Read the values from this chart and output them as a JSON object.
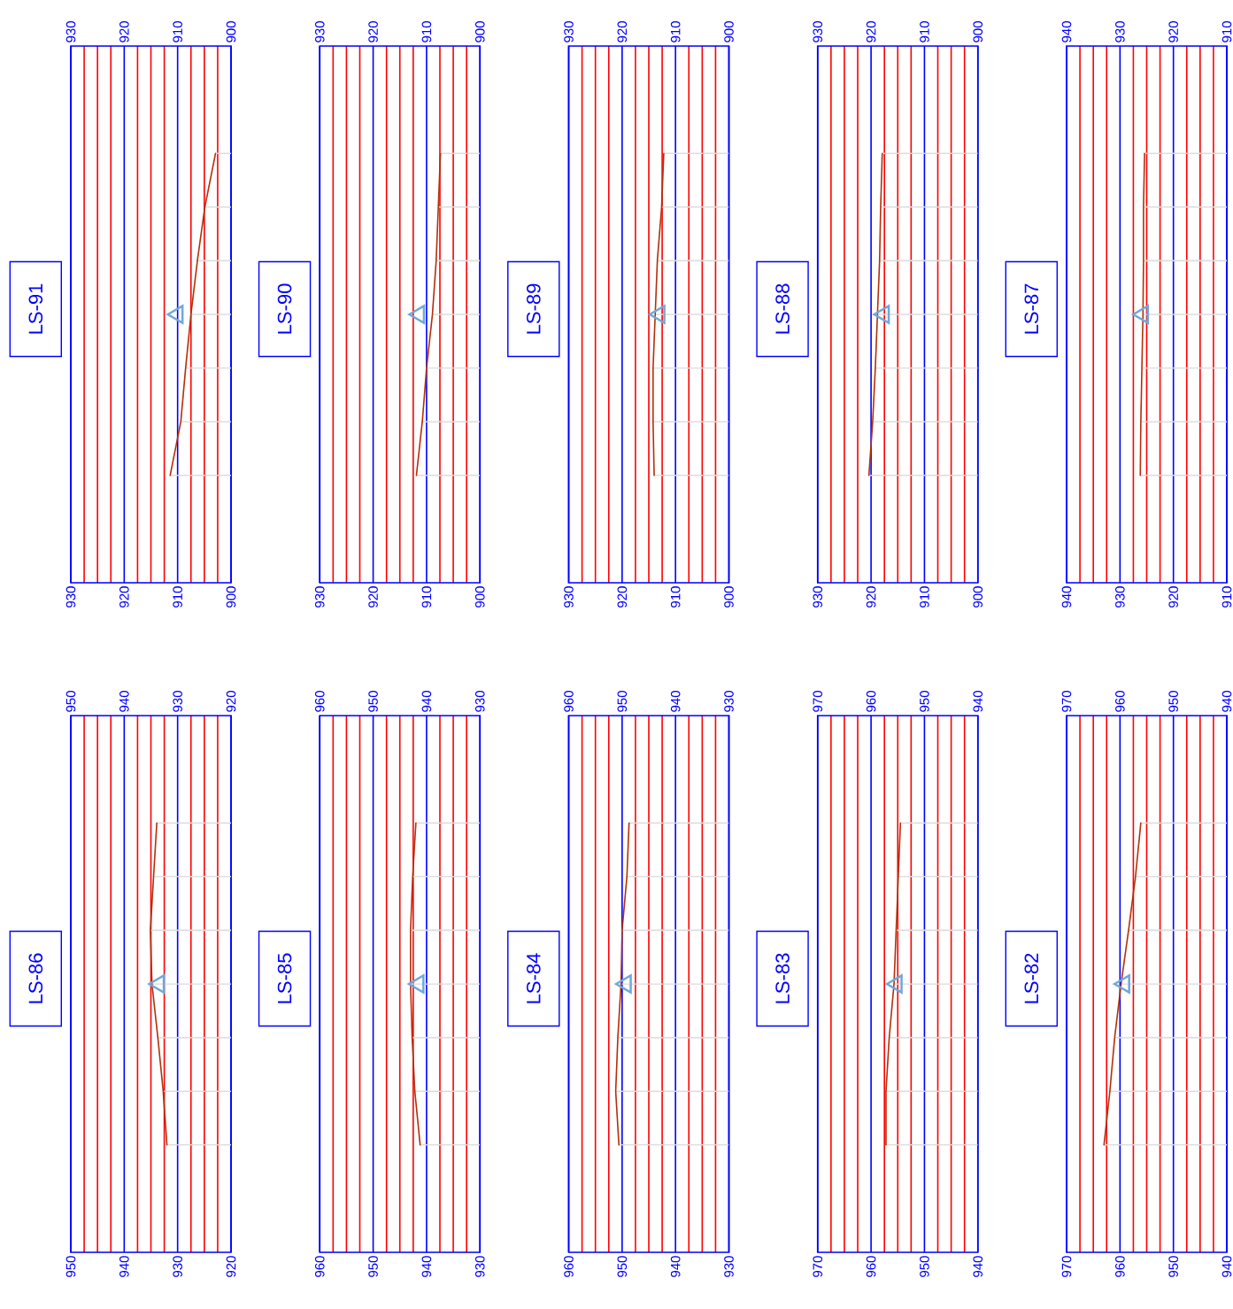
{
  "chart_data": [
    {
      "type": "line",
      "orientation": "horizontal",
      "title": "LS-91",
      "categories": [
        null,
        null,
        null,
        null,
        null,
        null,
        null
      ],
      "xlim": [
        930,
        900
      ],
      "xticks": [
        930,
        {
          "value": 927.5,
          "label": null
        },
        {
          "value": 925,
          "label": null
        },
        {
          "value": 922.5,
          "label": null
        },
        920,
        {
          "value": 917.5,
          "label": null
        },
        {
          "value": 915,
          "label": null
        },
        {
          "value": 912.5,
          "label": null
        },
        910,
        {
          "value": 907.5,
          "label": null
        },
        {
          "value": 905,
          "label": null
        },
        {
          "value": 902.5,
          "label": null
        },
        900
      ],
      "x2lim": [
        930,
        900
      ],
      "x2ticks": [
        930,
        920,
        910,
        900
      ],
      "tick_labels": "x",
      "grid": "x",
      "series": [
        {
          "type": "bar",
          "color": "#dddddd",
          "values": [
            902.9,
            904.9,
            906.3,
            907.5,
            908.5,
            909.4,
            911.4
          ]
        },
        {
          "color": "#b3300a",
          "values": [
            902.9,
            904.9,
            906.3,
            907.5,
            908.5,
            909.4,
            911.4
          ]
        },
        {
          "type": "scatter",
          "marker": "triangle",
          "color": "#6fa8dc",
          "values": [
            null,
            null,
            null,
            910.0,
            null,
            null,
            null
          ]
        }
      ]
    },
    {
      "type": "line",
      "orientation": "horizontal",
      "title": "LS-90",
      "categories": [
        null,
        null,
        null,
        null,
        null,
        null,
        null
      ],
      "xlim": [
        930,
        900
      ],
      "xticks": [
        930,
        {
          "value": 927.5,
          "label": null
        },
        {
          "value": 925,
          "label": null
        },
        {
          "value": 922.5,
          "label": null
        },
        920,
        {
          "value": 917.5,
          "label": null
        },
        {
          "value": 915,
          "label": null
        },
        {
          "value": 912.5,
          "label": null
        },
        910,
        {
          "value": 907.5,
          "label": null
        },
        {
          "value": 905,
          "label": null
        },
        {
          "value": 902.5,
          "label": null
        },
        900
      ],
      "x2lim": [
        930,
        900
      ],
      "x2ticks": [
        930,
        920,
        910,
        900
      ],
      "tick_labels": "x",
      "grid": "x",
      "series": [
        {
          "type": "bar",
          "color": "#dddddd",
          "values": [
            907.4,
            907.8,
            908.2,
            908.9,
            910.0,
            910.8,
            911.9
          ]
        },
        {
          "color": "#b3300a",
          "values": [
            907.4,
            907.8,
            908.2,
            908.9,
            910.0,
            910.8,
            911.9
          ]
        },
        {
          "type": "scatter",
          "marker": "triangle",
          "color": "#6fa8dc",
          "values": [
            null,
            null,
            null,
            911.4,
            null,
            null,
            null
          ]
        }
      ]
    },
    {
      "type": "line",
      "orientation": "horizontal",
      "title": "LS-89",
      "categories": [
        null,
        null,
        null,
        null,
        null,
        null,
        null
      ],
      "xlim": [
        930,
        900
      ],
      "xticks": [
        930,
        {
          "value": 927.5,
          "label": null
        },
        {
          "value": 925,
          "label": null
        },
        {
          "value": 922.5,
          "label": null
        },
        920,
        {
          "value": 917.5,
          "label": null
        },
        {
          "value": 915,
          "label": null
        },
        {
          "value": 912.5,
          "label": null
        },
        910,
        {
          "value": 907.5,
          "label": null
        },
        {
          "value": 905,
          "label": null
        },
        {
          "value": 902.5,
          "label": null
        },
        900
      ],
      "x2lim": [
        930,
        900
      ],
      "x2ticks": [
        930,
        920,
        910,
        900
      ],
      "tick_labels": "x",
      "grid": "x",
      "series": [
        {
          "type": "bar",
          "color": "#dddddd",
          "values": [
            912.2,
            912.6,
            913.4,
            913.8,
            914.2,
            914.2,
            914.0
          ]
        },
        {
          "color": "#b3300a",
          "values": [
            912.2,
            912.6,
            913.4,
            913.8,
            914.2,
            914.2,
            914.0
          ]
        },
        {
          "type": "scatter",
          "marker": "triangle",
          "color": "#6fa8dc",
          "values": [
            null,
            null,
            null,
            913.0,
            null,
            null,
            null
          ]
        }
      ]
    },
    {
      "type": "line",
      "orientation": "horizontal",
      "title": "LS-88",
      "categories": [
        null,
        null,
        null,
        null,
        null,
        null,
        null
      ],
      "xlim": [
        930,
        900
      ],
      "xticks": [
        930,
        {
          "value": 927.5,
          "label": null
        },
        {
          "value": 925,
          "label": null
        },
        {
          "value": 922.5,
          "label": null
        },
        920,
        {
          "value": 917.5,
          "label": null
        },
        {
          "value": 915,
          "label": null
        },
        {
          "value": 912.5,
          "label": null
        },
        910,
        {
          "value": 907.5,
          "label": null
        },
        {
          "value": 905,
          "label": null
        },
        {
          "value": 902.5,
          "label": null
        },
        900
      ],
      "x2lim": [
        930,
        900
      ],
      "x2ticks": [
        930,
        920,
        910,
        900
      ],
      "tick_labels": "x",
      "grid": "x",
      "series": [
        {
          "type": "bar",
          "color": "#dddddd",
          "values": [
            917.9,
            918.2,
            918.4,
            918.8,
            919.2,
            919.7,
            920.4
          ]
        },
        {
          "color": "#b3300a",
          "values": [
            917.9,
            918.2,
            918.4,
            918.8,
            919.2,
            919.7,
            920.4
          ]
        },
        {
          "type": "scatter",
          "marker": "triangle",
          "color": "#6fa8dc",
          "values": [
            null,
            null,
            null,
            917.6,
            null,
            null,
            null
          ]
        }
      ]
    },
    {
      "type": "line",
      "orientation": "horizontal",
      "title": "LS-87",
      "categories": [
        null,
        null,
        null,
        null,
        null,
        null,
        null
      ],
      "xlim": [
        940,
        910
      ],
      "xticks": [
        940,
        {
          "value": 937.5,
          "label": null
        },
        {
          "value": 935,
          "label": null
        },
        {
          "value": 932.5,
          "label": null
        },
        930,
        {
          "value": 927.5,
          "label": null
        },
        {
          "value": 925,
          "label": null
        },
        {
          "value": 922.5,
          "label": null
        },
        920,
        {
          "value": 917.5,
          "label": null
        },
        {
          "value": 915,
          "label": null
        },
        {
          "value": 912.5,
          "label": null
        },
        910
      ],
      "x2lim": [
        940,
        910
      ],
      "x2ticks": [
        940,
        930,
        920,
        910
      ],
      "tick_labels": "x",
      "grid": "x",
      "series": [
        {
          "type": "bar",
          "color": "#dddddd",
          "values": [
            925.4,
            925.6,
            925.6,
            925.7,
            925.9,
            926.1,
            926.2
          ]
        },
        {
          "color": "#b3300a",
          "values": [
            925.4,
            925.6,
            925.6,
            925.7,
            925.9,
            926.1,
            926.2
          ]
        },
        {
          "type": "scatter",
          "marker": "triangle",
          "color": "#6fa8dc",
          "values": [
            null,
            null,
            null,
            925.7,
            null,
            null,
            null
          ]
        }
      ]
    },
    {
      "type": "line",
      "orientation": "horizontal",
      "title": "LS-86",
      "categories": [
        null,
        null,
        null,
        null,
        null,
        null,
        null
      ],
      "xlim": [
        950,
        920
      ],
      "xticks": [
        950,
        {
          "value": 947.5,
          "label": null
        },
        {
          "value": 945,
          "label": null
        },
        {
          "value": 942.5,
          "label": null
        },
        940,
        {
          "value": 937.5,
          "label": null
        },
        {
          "value": 935,
          "label": null
        },
        {
          "value": 932.5,
          "label": null
        },
        930,
        {
          "value": 927.5,
          "label": null
        },
        {
          "value": 925,
          "label": null
        },
        {
          "value": 922.5,
          "label": null
        },
        920
      ],
      "x2lim": [
        950,
        920
      ],
      "x2ticks": [
        950,
        940,
        930,
        920
      ],
      "tick_labels": "x",
      "grid": "x",
      "series": [
        {
          "type": "bar",
          "color": "#dddddd",
          "values": [
            933.9,
            934.5,
            935.1,
            934.8,
            933.7,
            932.7,
            932.0
          ]
        },
        {
          "color": "#b3300a",
          "values": [
            933.9,
            934.5,
            935.1,
            934.8,
            933.7,
            932.7,
            932.0
          ]
        },
        {
          "type": "scatter",
          "marker": "triangle",
          "color": "#6fa8dc",
          "values": [
            null,
            null,
            null,
            933.5,
            null,
            null,
            null
          ]
        }
      ]
    },
    {
      "type": "line",
      "orientation": "horizontal",
      "title": "LS-85",
      "categories": [
        null,
        null,
        null,
        null,
        null,
        null,
        null
      ],
      "xlim": [
        960,
        930
      ],
      "xticks": [
        960,
        {
          "value": 957.5,
          "label": null
        },
        {
          "value": 955,
          "label": null
        },
        {
          "value": 952.5,
          "label": null
        },
        950,
        {
          "value": 947.5,
          "label": null
        },
        {
          "value": 945,
          "label": null
        },
        {
          "value": 942.5,
          "label": null
        },
        940,
        {
          "value": 937.5,
          "label": null
        },
        {
          "value": 935,
          "label": null
        },
        {
          "value": 932.5,
          "label": null
        },
        930
      ],
      "x2lim": [
        960,
        930
      ],
      "x2ticks": [
        960,
        950,
        940,
        930
      ],
      "tick_labels": "x",
      "grid": "x",
      "series": [
        {
          "type": "bar",
          "color": "#dddddd",
          "values": [
            942.0,
            942.6,
            943.0,
            943.0,
            942.7,
            942.2,
            941.2
          ]
        },
        {
          "color": "#b3300a",
          "values": [
            942.0,
            942.6,
            943.0,
            943.0,
            942.7,
            942.2,
            941.2
          ]
        },
        {
          "type": "scatter",
          "marker": "triangle",
          "color": "#6fa8dc",
          "values": [
            null,
            null,
            null,
            941.5,
            null,
            null,
            null
          ]
        }
      ]
    },
    {
      "type": "line",
      "orientation": "horizontal",
      "title": "LS-84",
      "categories": [
        null,
        null,
        null,
        null,
        null,
        null,
        null
      ],
      "xlim": [
        960,
        930
      ],
      "xticks": [
        960,
        {
          "value": 957.5,
          "label": null
        },
        {
          "value": 955,
          "label": null
        },
        {
          "value": 952.5,
          "label": null
        },
        950,
        {
          "value": 947.5,
          "label": null
        },
        {
          "value": 945,
          "label": null
        },
        {
          "value": 942.5,
          "label": null
        },
        940,
        {
          "value": 937.5,
          "label": null
        },
        {
          "value": 935,
          "label": null
        },
        {
          "value": 932.5,
          "label": null
        },
        930
      ],
      "x2lim": [
        960,
        930
      ],
      "x2ticks": [
        960,
        950,
        940,
        930
      ],
      "tick_labels": "x",
      "grid": "x",
      "series": [
        {
          "type": "bar",
          "color": "#dddddd",
          "values": [
            948.7,
            949.1,
            950.0,
            950.2,
            950.8,
            951.2,
            950.6
          ]
        },
        {
          "color": "#b3300a",
          "values": [
            948.7,
            949.1,
            950.0,
            950.2,
            950.8,
            951.2,
            950.6
          ]
        },
        {
          "type": "scatter",
          "marker": "triangle",
          "color": "#6fa8dc",
          "values": [
            null,
            null,
            null,
            949.3,
            null,
            null,
            null
          ]
        }
      ]
    },
    {
      "type": "line",
      "orientation": "horizontal",
      "title": "LS-83",
      "categories": [
        null,
        null,
        null,
        null,
        null,
        null,
        null
      ],
      "xlim": [
        970,
        940
      ],
      "xticks": [
        970,
        {
          "value": 967.5,
          "label": null
        },
        {
          "value": 965,
          "label": null
        },
        {
          "value": 962.5,
          "label": null
        },
        960,
        {
          "value": 957.5,
          "label": null
        },
        {
          "value": 955,
          "label": null
        },
        {
          "value": 952.5,
          "label": null
        },
        950,
        {
          "value": 947.5,
          "label": null
        },
        {
          "value": 945,
          "label": null
        },
        {
          "value": 942.5,
          "label": null
        },
        940
      ],
      "x2lim": [
        970,
        940
      ],
      "x2ticks": [
        970,
        960,
        950,
        940
      ],
      "tick_labels": "x",
      "grid": "x",
      "series": [
        {
          "type": "bar",
          "color": "#dddddd",
          "values": [
            954.5,
            954.9,
            955.3,
            955.7,
            956.6,
            957.2,
            957.2
          ]
        },
        {
          "color": "#b3300a",
          "values": [
            954.5,
            954.9,
            955.3,
            955.7,
            956.6,
            957.2,
            957.2
          ]
        },
        {
          "type": "scatter",
          "marker": "triangle",
          "color": "#6fa8dc",
          "values": [
            null,
            null,
            null,
            955.2,
            null,
            null,
            null
          ]
        }
      ]
    },
    {
      "type": "line",
      "orientation": "horizontal",
      "title": "LS-82",
      "categories": [
        null,
        null,
        null,
        null,
        null,
        null,
        null
      ],
      "xlim": [
        970,
        940
      ],
      "xticks": [
        970,
        {
          "value": 967.5,
          "label": null
        },
        {
          "value": 965,
          "label": null
        },
        {
          "value": 962.5,
          "label": null
        },
        960,
        {
          "value": 957.5,
          "label": null
        },
        {
          "value": 955,
          "label": null
        },
        {
          "value": 952.5,
          "label": null
        },
        950,
        {
          "value": 947.5,
          "label": null
        },
        {
          "value": 945,
          "label": null
        },
        {
          "value": 942.5,
          "label": null
        },
        940
      ],
      "x2lim": [
        970,
        940
      ],
      "x2ticks": [
        970,
        960,
        950,
        940
      ],
      "tick_labels": "x",
      "grid": "x",
      "series": [
        {
          "type": "bar",
          "color": "#dddddd",
          "values": [
            956.1,
            957.1,
            958.4,
            959.8,
            961.0,
            961.9,
            963.0
          ]
        },
        {
          "color": "#b3300a",
          "values": [
            956.1,
            957.1,
            958.4,
            959.8,
            961.0,
            961.9,
            963.0
          ]
        },
        {
          "type": "scatter",
          "marker": "triangle",
          "color": "#6fa8dc",
          "values": [
            null,
            null,
            null,
            959.2,
            null,
            null,
            null
          ]
        }
      ]
    }
  ]
}
